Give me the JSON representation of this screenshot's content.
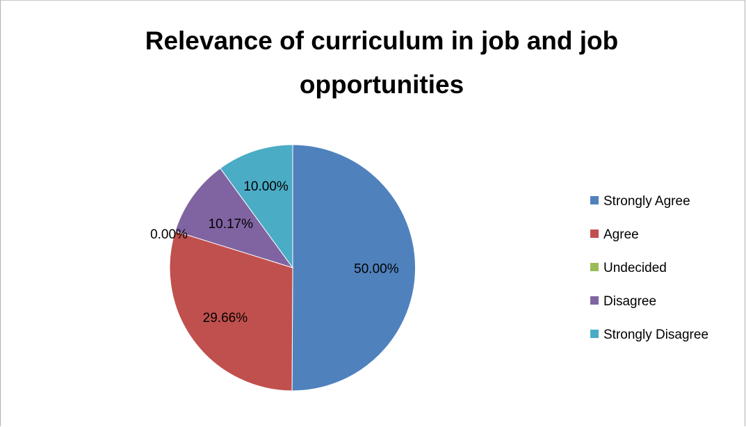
{
  "chart_data": {
    "type": "pie",
    "title_lines": [
      "Relevance of curriculum in job and job",
      "opportunities"
    ],
    "categories": [
      "Strongly Agree",
      "Agree",
      "Undecided",
      "Disagree",
      "Strongly Disagree"
    ],
    "values": [
      50.0,
      29.66,
      0.0,
      10.17,
      10.0
    ],
    "data_labels": [
      "50.00%",
      "29.66%",
      "0.00%",
      "10.17%",
      "10.00%"
    ],
    "colors": [
      "#4F81BD",
      "#C0504D",
      "#9BBB59",
      "#8064A2",
      "#4BACC6"
    ],
    "legend_position": "right"
  }
}
